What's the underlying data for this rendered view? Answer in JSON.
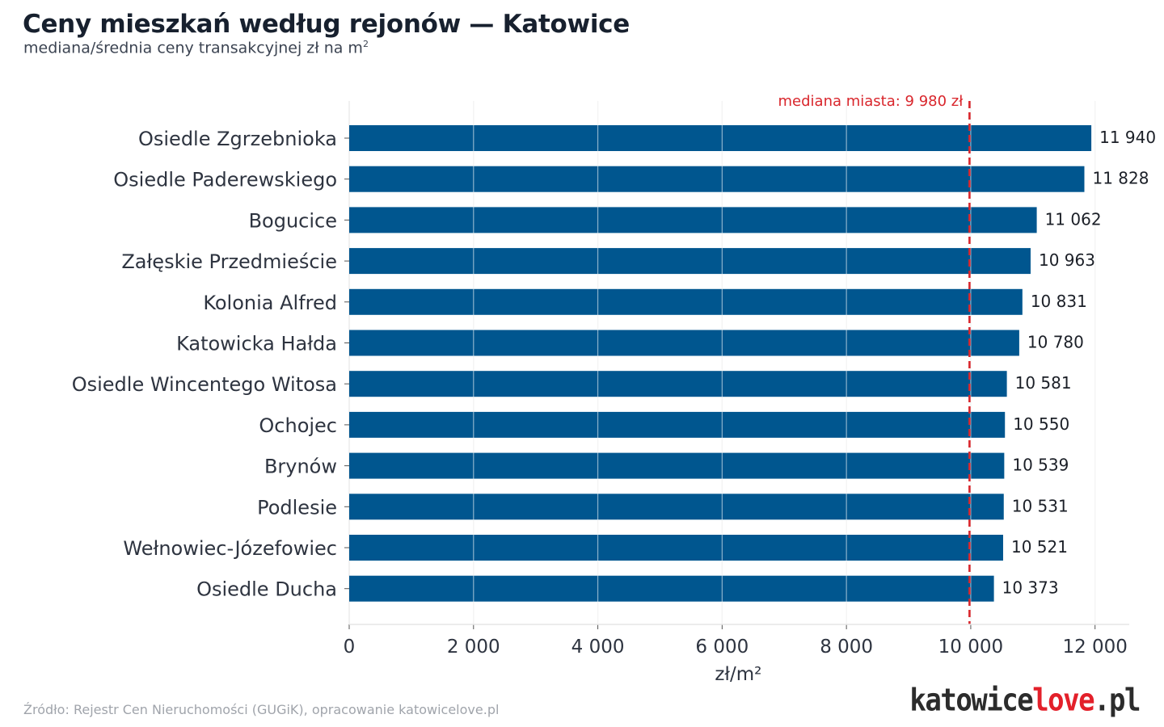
{
  "header": {
    "title": "Ceny mieszkań według rejonów — Katowice",
    "subtitle_main": "mediana/średnia ceny transakcyjnej zł na m",
    "subtitle_sup": "2"
  },
  "footer": {
    "source": "Źródło: Rejestr Cen Nieruchomości (GUGiK), opracowanie katowicelove.pl",
    "logo_part1": "katowice",
    "logo_part2": "love",
    "logo_part3": ".pl"
  },
  "colors": {
    "bar": "#00568f",
    "reference_line": "#d9262c",
    "grid": "#e6e6e6",
    "logo_accent": "#e3202a"
  },
  "chart_data": {
    "type": "bar",
    "orientation": "horizontal",
    "categories": [
      "Osiedle Zgrzebnioka",
      "Osiedle Paderewskiego",
      "Bogucice",
      "Załęskie Przedmieście",
      "Kolonia Alfred",
      "Katowicka Hałda",
      "Osiedle Wincentego Witosa",
      "Ochojec",
      "Brynów",
      "Podlesie",
      "Wełnowiec-Józefowiec",
      "Osiedle Ducha"
    ],
    "values": [
      11940,
      11828,
      11062,
      10963,
      10831,
      10780,
      10581,
      10550,
      10539,
      10531,
      10521,
      10373
    ],
    "value_labels": [
      "11 940",
      "11 828",
      "11 062",
      "10 963",
      "10 831",
      "10 780",
      "10 581",
      "10 550",
      "10 539",
      "10 531",
      "10 521",
      "10 373"
    ],
    "xlabel": "zł/m²",
    "ylabel": "",
    "xlim": [
      0,
      12550
    ],
    "xticks": [
      0,
      2000,
      4000,
      6000,
      8000,
      10000,
      12000
    ],
    "xtick_labels": [
      "0",
      "2 000",
      "4 000",
      "6 000",
      "8 000",
      "10 000",
      "12 000"
    ],
    "grid": "vertical",
    "reference_line": {
      "value": 9980,
      "label": "mediana miasta: 9 980 zł"
    }
  }
}
